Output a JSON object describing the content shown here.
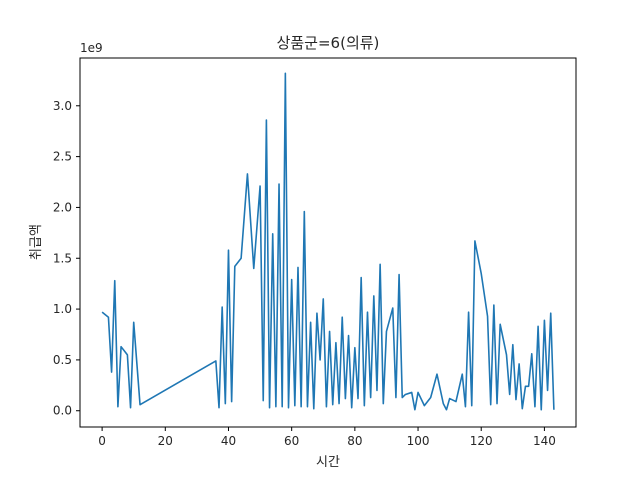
{
  "chart_data": {
    "type": "line",
    "title": "상품군=6(의류)",
    "xlabel": "시간",
    "ylabel": "취급액",
    "offset_text": "1e9",
    "x_ticks": [
      0,
      20,
      40,
      60,
      80,
      100,
      120,
      140
    ],
    "x_tick_labels": [
      "0",
      "20",
      "40",
      "60",
      "80",
      "100",
      "120",
      "140"
    ],
    "y_ticks": [
      0.0,
      0.5,
      1.0,
      1.5,
      2.0,
      2.5,
      3.0
    ],
    "y_tick_labels": [
      "0.0",
      "0.5",
      "1.0",
      "1.5",
      "2.0",
      "2.5",
      "3.0"
    ],
    "xlim": [
      -7,
      150
    ],
    "ylim": [
      -0.16,
      3.47
    ],
    "series_color": "#1f77b4",
    "series": [
      {
        "x": [
          0,
          2,
          3,
          4,
          5,
          6,
          8,
          9,
          10,
          12,
          36,
          37,
          38,
          39,
          40,
          41,
          42,
          44,
          46,
          48,
          50,
          51,
          52,
          53,
          54,
          55,
          56,
          57,
          58,
          59,
          60,
          61,
          62,
          63,
          64,
          65,
          66,
          67,
          68,
          69,
          70,
          71,
          72,
          73,
          74,
          75,
          76,
          77,
          78,
          79,
          80,
          81,
          82,
          83,
          84,
          85,
          86,
          87,
          88,
          89,
          90,
          92,
          93,
          94,
          95,
          96,
          98,
          99,
          100,
          102,
          104,
          106,
          108,
          109,
          110,
          112,
          114,
          115,
          116,
          117,
          118,
          120,
          122,
          123,
          124,
          125,
          126,
          128,
          129,
          130,
          131,
          132,
          133,
          134,
          135,
          136,
          137,
          138,
          139,
          140,
          141,
          142,
          143
        ],
        "y": [
          0.97,
          0.92,
          0.38,
          1.28,
          0.04,
          0.63,
          0.55,
          0.03,
          0.87,
          0.06,
          0.49,
          0.03,
          1.02,
          0.07,
          1.58,
          0.09,
          1.42,
          1.5,
          2.33,
          1.4,
          2.21,
          0.1,
          2.86,
          0.03,
          1.74,
          0.04,
          2.23,
          0.04,
          3.32,
          0.03,
          1.29,
          0.05,
          1.41,
          0.04,
          1.96,
          0.04,
          0.87,
          0.02,
          0.96,
          0.5,
          1.1,
          0.04,
          0.78,
          0.06,
          0.67,
          0.07,
          0.92,
          0.12,
          0.74,
          0.03,
          0.62,
          0.12,
          1.31,
          0.05,
          0.97,
          0.13,
          1.13,
          0.2,
          1.44,
          0.07,
          0.78,
          1.01,
          0.13,
          1.34,
          0.13,
          0.16,
          0.18,
          0.01,
          0.18,
          0.05,
          0.13,
          0.36,
          0.07,
          0.01,
          0.12,
          0.09,
          0.36,
          0.04,
          0.97,
          0.05,
          1.67,
          1.35,
          0.93,
          0.06,
          1.04,
          0.07,
          0.85,
          0.55,
          0.16,
          0.65,
          0.11,
          0.46,
          0.02,
          0.24,
          0.24,
          0.56,
          0.04,
          0.83,
          0.01,
          0.89,
          0.2,
          0.96,
          0.01
        ]
      }
    ]
  }
}
